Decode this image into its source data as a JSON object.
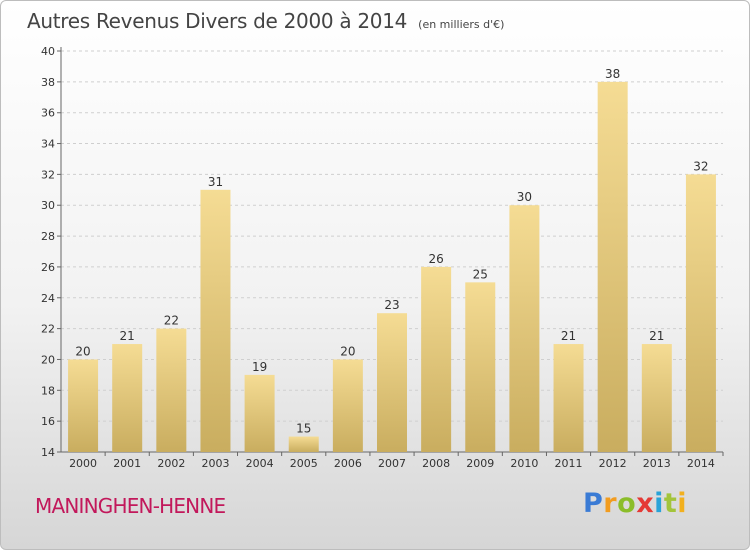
{
  "title": "Autres Revenus Divers de 2000 à 2014",
  "subtitle": "(en milliers d'€)",
  "commune": "MANINGHEN-HENNE",
  "logo": {
    "letters": [
      "P",
      "r",
      "o",
      "x",
      "i",
      "t",
      "i"
    ]
  },
  "colors": {
    "commune": "#c2185b",
    "bar_top": "#f5dc94",
    "bar_bottom": "#c9ad5f",
    "grid": "#cfcfcf"
  },
  "chart_data": {
    "type": "bar",
    "categories": [
      "2000",
      "2001",
      "2002",
      "2003",
      "2004",
      "2005",
      "2006",
      "2007",
      "2008",
      "2009",
      "2010",
      "2011",
      "2012",
      "2013",
      "2014"
    ],
    "values": [
      20,
      21,
      22,
      31,
      19,
      15,
      20,
      23,
      26,
      25,
      30,
      21,
      38,
      21,
      32
    ],
    "value_labels": [
      "20",
      "21",
      "22",
      "31",
      "19",
      "15",
      "20",
      "23",
      "26",
      "25",
      "30",
      "21",
      "38",
      "21",
      "32"
    ],
    "title": "Autres Revenus Divers de 2000 à 2014",
    "subtitle": "(en milliers d'€)",
    "xlabel": "",
    "ylabel": "",
    "ylim": [
      14,
      40
    ],
    "yticks": [
      "14",
      "16",
      "18",
      "20",
      "22",
      "24",
      "26",
      "28",
      "30",
      "32",
      "34",
      "36",
      "38",
      "40"
    ],
    "grid": true,
    "legend": "none"
  }
}
